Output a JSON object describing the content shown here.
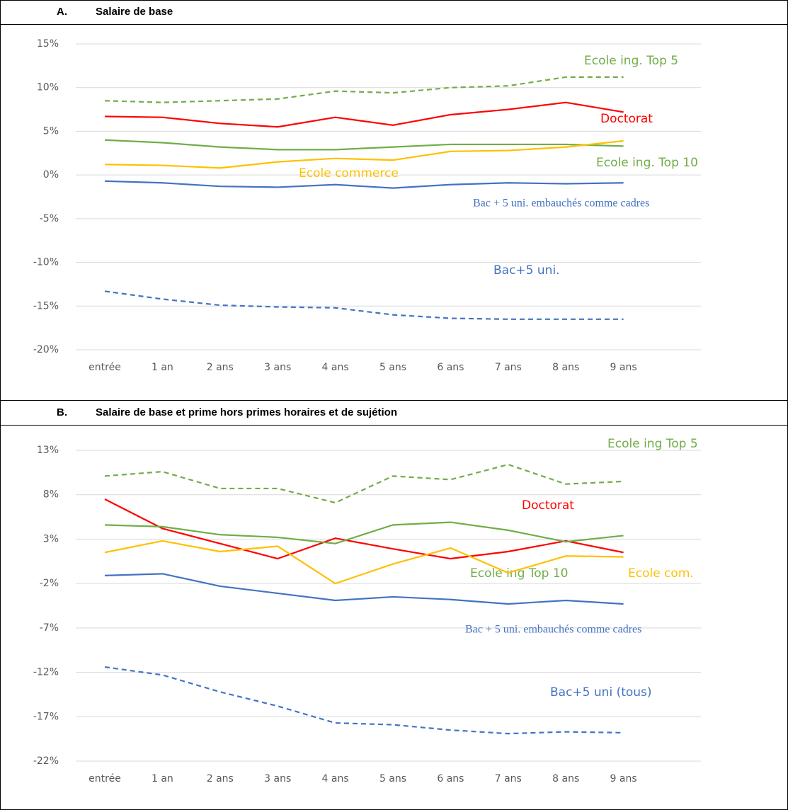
{
  "chart_data": [
    {
      "type": "line",
      "panel": "A.",
      "title": "Salaire de base",
      "categories": [
        "entrée",
        "1 an",
        "2 ans",
        "3 ans",
        "4 ans",
        "5 ans",
        "6 ans",
        "7 ans",
        "8 ans",
        "9 ans"
      ],
      "ylim": [
        -20,
        15
      ],
      "yticks": [
        {
          "value": 15,
          "label": "15%"
        },
        {
          "value": 10,
          "label": "10%"
        },
        {
          "value": 5,
          "label": "5%"
        },
        {
          "value": 0,
          "label": "0%"
        },
        {
          "value": -5,
          "label": "-5%"
        },
        {
          "value": -10,
          "label": "-10%"
        },
        {
          "value": -15,
          "label": "-15%"
        },
        {
          "value": -20,
          "label": "-20%"
        }
      ],
      "grid": true,
      "series": [
        {
          "name": "Ecole ing. Top 5",
          "color": "#70ad47",
          "dash": true,
          "values": [
            8.5,
            8.3,
            8.5,
            8.7,
            9.6,
            9.4,
            10.0,
            10.2,
            11.2,
            11.2
          ]
        },
        {
          "name": "Doctorat",
          "color": "#ff0000",
          "dash": false,
          "values": [
            6.7,
            6.6,
            5.9,
            5.5,
            6.6,
            5.7,
            6.9,
            7.5,
            8.3,
            7.2
          ]
        },
        {
          "name": "Ecole ing. Top 10",
          "color": "#70ad47",
          "dash": false,
          "values": [
            4.0,
            3.7,
            3.2,
            2.9,
            2.9,
            3.2,
            3.5,
            3.5,
            3.5,
            3.3
          ]
        },
        {
          "name": "Ecole commerce",
          "color": "#ffc000",
          "dash": false,
          "values": [
            1.2,
            1.1,
            0.8,
            1.5,
            1.9,
            1.7,
            2.7,
            2.8,
            3.2,
            3.9
          ]
        },
        {
          "name": "Bac + 5 uni. embauchés comme cadres",
          "color": "#4472c4",
          "dash": false,
          "values": [
            -0.7,
            -0.9,
            -1.3,
            -1.4,
            -1.1,
            -1.5,
            -1.1,
            -0.9,
            -1.0,
            -0.9
          ]
        },
        {
          "name": "Bac+5 uni.",
          "color": "#4472c4",
          "dash": true,
          "values": [
            -13.3,
            -14.2,
            -14.9,
            -15.1,
            -15.2,
            -16.0,
            -16.4,
            -16.5,
            -16.5,
            -16.5
          ]
        }
      ]
    },
    {
      "type": "line",
      "panel": "B.",
      "title": "Salaire de base et prime hors primes horaires et de sujétion",
      "categories": [
        "entrée",
        "1 an",
        "2 ans",
        "3 ans",
        "4 ans",
        "5 ans",
        "6 ans",
        "7 ans",
        "8 ans",
        "9 ans"
      ],
      "ylim": [
        -22,
        13
      ],
      "yticks": [
        {
          "value": 13,
          "label": "13%"
        },
        {
          "value": 8,
          "label": "8%"
        },
        {
          "value": 3,
          "label": "3%"
        },
        {
          "value": -2,
          "label": "-2%"
        },
        {
          "value": -7,
          "label": "-7%"
        },
        {
          "value": -12,
          "label": "-12%"
        },
        {
          "value": -17,
          "label": "-17%"
        },
        {
          "value": -22,
          "label": "-22%"
        }
      ],
      "grid": true,
      "series": [
        {
          "name": "Ecole ing Top 5",
          "color": "#70ad47",
          "dash": true,
          "values": [
            10.1,
            10.6,
            8.7,
            8.7,
            7.1,
            10.1,
            9.7,
            11.4,
            9.2,
            9.5
          ]
        },
        {
          "name": "Doctorat",
          "color": "#ff0000",
          "dash": false,
          "values": [
            7.5,
            4.2,
            2.5,
            0.8,
            3.1,
            1.9,
            0.8,
            1.6,
            2.8,
            1.5
          ]
        },
        {
          "name": "Ecole ing Top 10",
          "color": "#70ad47",
          "dash": false,
          "values": [
            4.6,
            4.4,
            3.5,
            3.2,
            2.5,
            4.6,
            4.9,
            4.0,
            2.7,
            3.4
          ]
        },
        {
          "name": "Ecole com.",
          "color": "#ffc000",
          "dash": false,
          "values": [
            1.5,
            2.8,
            1.6,
            2.2,
            -2.0,
            0.2,
            2.0,
            -0.8,
            1.1,
            1.0
          ]
        },
        {
          "name": "Bac + 5 uni. embauchés comme cadres",
          "color": "#4472c4",
          "dash": false,
          "values": [
            -1.1,
            -0.9,
            -2.3,
            -3.1,
            -3.9,
            -3.5,
            -3.8,
            -4.3,
            -3.9,
            -4.3
          ]
        },
        {
          "name": "Bac+5 uni (tous)",
          "color": "#4472c4",
          "dash": true,
          "values": [
            -11.4,
            -12.3,
            -14.2,
            -15.8,
            -17.7,
            -17.9,
            -18.5,
            -18.9,
            -18.7,
            -18.8
          ]
        }
      ]
    }
  ]
}
